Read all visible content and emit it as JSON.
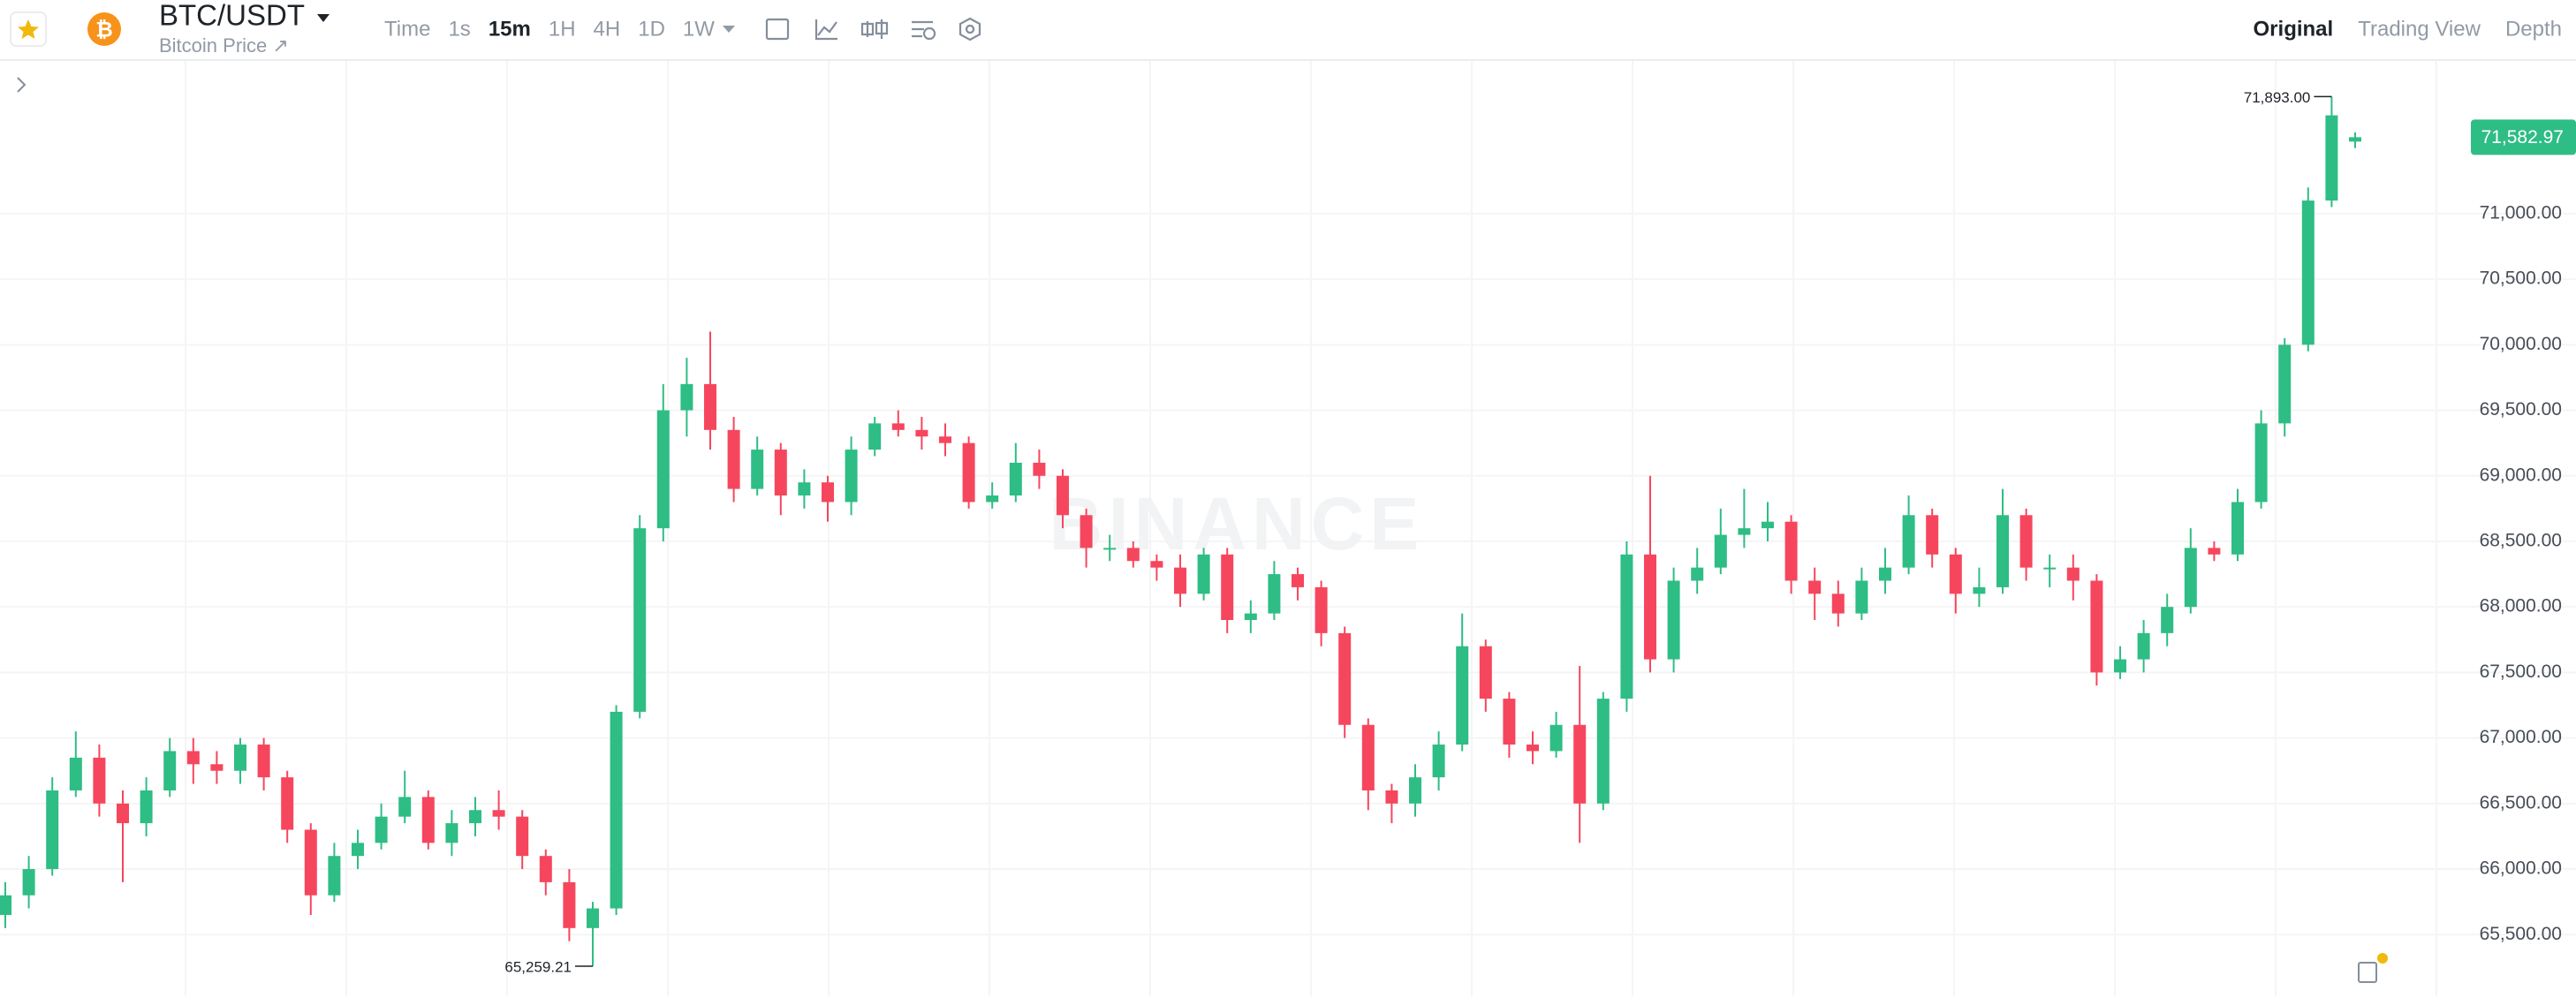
{
  "toolbar": {
    "symbol": "BTC/USDT",
    "subtitle": "Bitcoin Price ↗",
    "intervals": [
      "Time",
      "1s",
      "15m",
      "1H",
      "4H",
      "1D",
      "1W"
    ],
    "active_interval": "15m",
    "views": [
      "Original",
      "Trading View",
      "Depth"
    ],
    "active_view": "Original"
  },
  "chart_data": {
    "type": "candlestick",
    "watermark": "BINANCE",
    "up_color": "#2ebd85",
    "down_color": "#f6465d",
    "grid": true,
    "ylim": [
      65030,
      72165
    ],
    "yticks": [
      {
        "value": 65500,
        "label": "65,500.00"
      },
      {
        "value": 66000,
        "label": "66,000.00"
      },
      {
        "value": 66500,
        "label": "66,500.00"
      },
      {
        "value": 67000,
        "label": "67,000.00"
      },
      {
        "value": 67500,
        "label": "67,500.00"
      },
      {
        "value": 68000,
        "label": "68,000.00"
      },
      {
        "value": 68500,
        "label": "68,500.00"
      },
      {
        "value": 69000,
        "label": "69,000.00"
      },
      {
        "value": 69500,
        "label": "69,500.00"
      },
      {
        "value": 70000,
        "label": "70,000.00"
      },
      {
        "value": 70500,
        "label": "70,500.00"
      },
      {
        "value": 71000,
        "label": "71,000.00"
      }
    ],
    "last_price": {
      "value": 71582.97,
      "label": "71,582.97"
    },
    "annotations": [
      {
        "value": 71893,
        "label": "71,893.00"
      },
      {
        "value": 65259.21,
        "label": "65,259.21"
      }
    ],
    "open": [
      65650,
      65800,
      66000,
      66600,
      66850,
      66500,
      66350,
      66600,
      66900,
      66800,
      66750,
      66950,
      66700,
      66300,
      65800,
      66100,
      66200,
      66400,
      66550,
      66200,
      66350,
      66450,
      66400,
      66100,
      65900,
      65550,
      65700,
      67200,
      68600,
      69500,
      69700,
      69350,
      68900,
      69200,
      68850,
      68950,
      68800,
      69200,
      69400,
      69350,
      69300,
      69250,
      68800,
      68850,
      69100,
      69000,
      68700,
      68450,
      68450,
      68350,
      68300,
      68100,
      68400,
      67900,
      67950,
      68250,
      68150,
      67800,
      67100,
      66600,
      66500,
      66700,
      66950,
      67700,
      67300,
      66950,
      66900,
      67100,
      66500,
      67300,
      68400,
      67600,
      68200,
      68300,
      68550,
      68600,
      68650,
      68200,
      68100,
      67950,
      68200,
      68300,
      68700,
      68400,
      68100,
      68150,
      68700,
      68300,
      68300,
      68200,
      67500,
      67600,
      67800,
      68000,
      68450,
      68400,
      68800,
      69400,
      70000,
      71100,
      71550
    ],
    "high": [
      65900,
      66100,
      66700,
      67050,
      66950,
      66600,
      66700,
      67000,
      67000,
      66900,
      67000,
      67000,
      66750,
      66350,
      66200,
      66300,
      66500,
      66750,
      66600,
      66450,
      66550,
      66600,
      66450,
      66150,
      66000,
      65750,
      67250,
      68700,
      69700,
      69900,
      70100,
      69450,
      69300,
      69250,
      69050,
      69000,
      69300,
      69450,
      69500,
      69450,
      69400,
      69300,
      68950,
      69250,
      69200,
      69050,
      68750,
      68550,
      68500,
      68400,
      68400,
      68450,
      68450,
      68050,
      68350,
      68300,
      68200,
      67850,
      67150,
      66650,
      66800,
      67050,
      67950,
      67750,
      67350,
      67050,
      67200,
      67550,
      67350,
      68500,
      69000,
      68300,
      68450,
      68750,
      68900,
      68800,
      68700,
      68300,
      68200,
      68300,
      68450,
      68850,
      68750,
      68450,
      68300,
      68900,
      68750,
      68400,
      68400,
      68250,
      67700,
      67900,
      68100,
      68600,
      68500,
      68900,
      69500,
      70050,
      71200,
      71893,
      71620
    ],
    "low": [
      65550,
      65700,
      65950,
      66550,
      66400,
      65900,
      66250,
      66550,
      66650,
      66650,
      66650,
      66600,
      66200,
      65650,
      65750,
      66000,
      66150,
      66350,
      66150,
      66100,
      66250,
      66300,
      66000,
      65800,
      65450,
      65259.21,
      65650,
      67150,
      68500,
      69300,
      69200,
      68800,
      68850,
      68700,
      68750,
      68650,
      68700,
      69150,
      69300,
      69200,
      69150,
      68750,
      68750,
      68800,
      68900,
      68600,
      68300,
      68350,
      68300,
      68200,
      68000,
      68050,
      67800,
      67800,
      67900,
      68050,
      67700,
      67000,
      66450,
      66350,
      66400,
      66600,
      66900,
      67200,
      66850,
      66800,
      66850,
      66200,
      66450,
      67200,
      67500,
      67500,
      68100,
      68250,
      68450,
      68500,
      68100,
      67900,
      67850,
      67900,
      68100,
      68250,
      68300,
      67950,
      68000,
      68100,
      68200,
      68150,
      68050,
      67400,
      67450,
      67500,
      67700,
      67950,
      68350,
      68350,
      68750,
      69300,
      69950,
      71050,
      71500
    ],
    "close": [
      65800,
      66000,
      66600,
      66850,
      66500,
      66350,
      66600,
      66900,
      66800,
      66750,
      66950,
      66700,
      66300,
      65800,
      66100,
      66200,
      66400,
      66550,
      66200,
      66350,
      66450,
      66400,
      66100,
      65900,
      65550,
      65700,
      67200,
      68600,
      69500,
      69700,
      69350,
      68900,
      69200,
      68850,
      68950,
      68800,
      69200,
      69400,
      69350,
      69300,
      69250,
      68800,
      68850,
      69100,
      69000,
      68700,
      68450,
      68450,
      68350,
      68300,
      68100,
      68400,
      67900,
      67950,
      68250,
      68150,
      67800,
      67100,
      66600,
      66500,
      66700,
      66950,
      67700,
      67300,
      66950,
      66900,
      67100,
      66500,
      67300,
      68400,
      67600,
      68200,
      68300,
      68550,
      68600,
      68650,
      68200,
      68100,
      67950,
      68200,
      68300,
      68700,
      68400,
      68100,
      68150,
      68700,
      68300,
      68300,
      68200,
      67500,
      67600,
      67800,
      68000,
      68450,
      68400,
      68800,
      69400,
      70000,
      71100,
      71750,
      71583
    ]
  }
}
